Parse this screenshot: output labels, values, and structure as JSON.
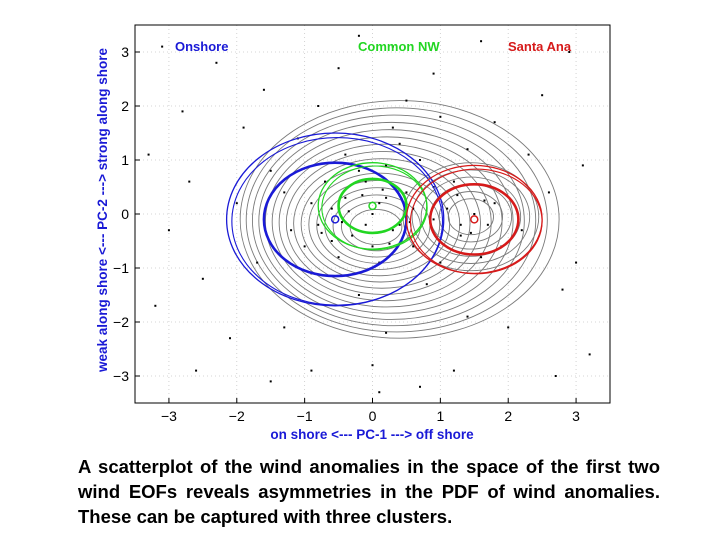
{
  "chart_data": {
    "type": "scatter",
    "title": "",
    "xlabel": "on shore <--- PC-1 ---> off shore",
    "ylabel": "weak along shore <--- PC-2 ---> strong along shore",
    "xlim": [
      -3.5,
      3.5
    ],
    "ylim": [
      -3.5,
      3.5
    ],
    "xticks": [
      -3,
      -2,
      -1,
      0,
      1,
      2,
      3
    ],
    "yticks": [
      -3,
      -2,
      -1,
      0,
      1,
      2,
      3
    ],
    "xtick_labels": [
      "−3",
      "−2",
      "−1",
      "0",
      "1",
      "2",
      "3"
    ],
    "ytick_labels": [
      "−3",
      "−2",
      "−1",
      "0",
      "1",
      "2",
      "3"
    ],
    "grid": true,
    "clusters": [
      {
        "name": "Onshore",
        "color": "#1a1ad6",
        "center": [
          -0.55,
          -0.1
        ],
        "inner_radius": 1.05,
        "outer_radius": 1.6
      },
      {
        "name": "Common NW",
        "color": "#22d622",
        "center": [
          0.0,
          0.15
        ],
        "inner_radius": 0.5,
        "outer_radius": 0.8
      },
      {
        "name": "Santa Ana",
        "color": "#d61a1a",
        "center": [
          1.5,
          -0.1
        ],
        "inner_radius": 0.65,
        "outer_radius": 1.0
      }
    ],
    "scatter_points": [
      [
        0.2,
        0.3
      ],
      [
        -0.1,
        0.6
      ],
      [
        0.4,
        -0.2
      ],
      [
        -0.6,
        0.1
      ],
      [
        0.9,
        0.5
      ],
      [
        1.3,
        -0.4
      ],
      [
        -1.2,
        -0.3
      ],
      [
        0.1,
        -0.9
      ],
      [
        -0.4,
        1.1
      ],
      [
        0.7,
        1.0
      ],
      [
        1.8,
        0.2
      ],
      [
        1.6,
        -0.8
      ],
      [
        -1.5,
        0.8
      ],
      [
        -0.9,
        -1.1
      ],
      [
        0.3,
        1.6
      ],
      [
        -0.2,
        -1.5
      ],
      [
        1.1,
        0.1
      ],
      [
        -0.7,
        0.6
      ],
      [
        0.5,
        0.4
      ],
      [
        0.0,
        0.0
      ],
      [
        2.2,
        -0.3
      ],
      [
        -2.0,
        0.2
      ],
      [
        0.8,
        -1.3
      ],
      [
        -1.1,
        1.4
      ],
      [
        1.4,
        1.2
      ],
      [
        -0.3,
        -0.4
      ],
      [
        0.6,
        -0.6
      ],
      [
        -0.8,
        -0.2
      ],
      [
        0.2,
        0.9
      ],
      [
        1.0,
        -0.9
      ],
      [
        -1.7,
        -0.9
      ],
      [
        0.4,
        1.3
      ],
      [
        -0.5,
        -0.8
      ],
      [
        1.9,
        -0.6
      ],
      [
        -1.3,
        0.4
      ],
      [
        0.1,
        0.2
      ],
      [
        -0.1,
        -0.2
      ],
      [
        0.3,
        -0.3
      ],
      [
        -0.4,
        0.3
      ],
      [
        0.6,
        0.1
      ],
      [
        1.2,
        0.6
      ],
      [
        1.5,
        0.0
      ],
      [
        1.7,
        -0.2
      ],
      [
        1.3,
        -0.2
      ],
      [
        -0.9,
        0.2
      ],
      [
        -1.0,
        -0.6
      ],
      [
        -0.2,
        0.8
      ],
      [
        0.9,
        -0.1
      ],
      [
        0.0,
        -0.6
      ],
      [
        -0.6,
        -0.5
      ],
      [
        2.6,
        0.4
      ],
      [
        -2.5,
        -1.2
      ],
      [
        0.5,
        2.1
      ],
      [
        -0.8,
        2.0
      ],
      [
        1.0,
        1.8
      ],
      [
        -1.9,
        1.6
      ],
      [
        2.3,
        1.1
      ],
      [
        -2.7,
        0.6
      ],
      [
        0.2,
        -2.2
      ],
      [
        -1.3,
        -2.1
      ],
      [
        1.4,
        -1.9
      ],
      [
        2.8,
        -1.4
      ],
      [
        -3.0,
        -0.3
      ],
      [
        -0.5,
        2.7
      ],
      [
        0.9,
        2.6
      ],
      [
        -2.1,
        -2.3
      ],
      [
        1.8,
        1.7
      ],
      [
        -1.6,
        2.3
      ],
      [
        2.0,
        -2.1
      ],
      [
        0.0,
        -2.8
      ],
      [
        3.1,
        0.9
      ],
      [
        -2.8,
        1.9
      ],
      [
        1.2,
        -2.9
      ],
      [
        -0.9,
        -2.9
      ],
      [
        2.5,
        2.2
      ],
      [
        -3.2,
        -1.7
      ],
      [
        0.3,
        3.1
      ],
      [
        -1.5,
        -3.1
      ],
      [
        3.2,
        -2.6
      ],
      [
        -2.3,
        2.8
      ],
      [
        0.7,
        -3.2
      ],
      [
        2.9,
        3.0
      ],
      [
        -3.3,
        1.1
      ],
      [
        1.6,
        3.2
      ],
      [
        -0.2,
        3.3
      ],
      [
        3.0,
        -0.9
      ],
      [
        -2.6,
        -2.9
      ],
      [
        2.7,
        -3.0
      ],
      [
        -3.1,
        3.1
      ],
      [
        0.1,
        -3.3
      ],
      [
        0.15,
        0.45
      ],
      [
        -0.35,
        0.05
      ],
      [
        0.55,
        -0.15
      ],
      [
        0.25,
        -0.55
      ],
      [
        -0.15,
        0.35
      ],
      [
        1.45,
        -0.35
      ],
      [
        1.65,
        0.25
      ],
      [
        1.25,
        0.35
      ],
      [
        -0.75,
        -0.35
      ],
      [
        -0.45,
        -0.15
      ]
    ]
  },
  "legend": {
    "onshore": "Onshore",
    "common_nw": "Common NW",
    "santa_ana": "Santa Ana"
  },
  "caption": "A scatterplot of the wind anomalies in the space of the first two wind EOFs reveals asymmetries in the PDF of wind anomalies.  These can be captured with three clusters.",
  "colors": {
    "axis_label": "#1a1ad6",
    "onshore": "#1a1ad6",
    "common_nw": "#22d622",
    "santa_ana": "#d61a1a",
    "contour": "#7a7a7a",
    "point": "#000000"
  }
}
